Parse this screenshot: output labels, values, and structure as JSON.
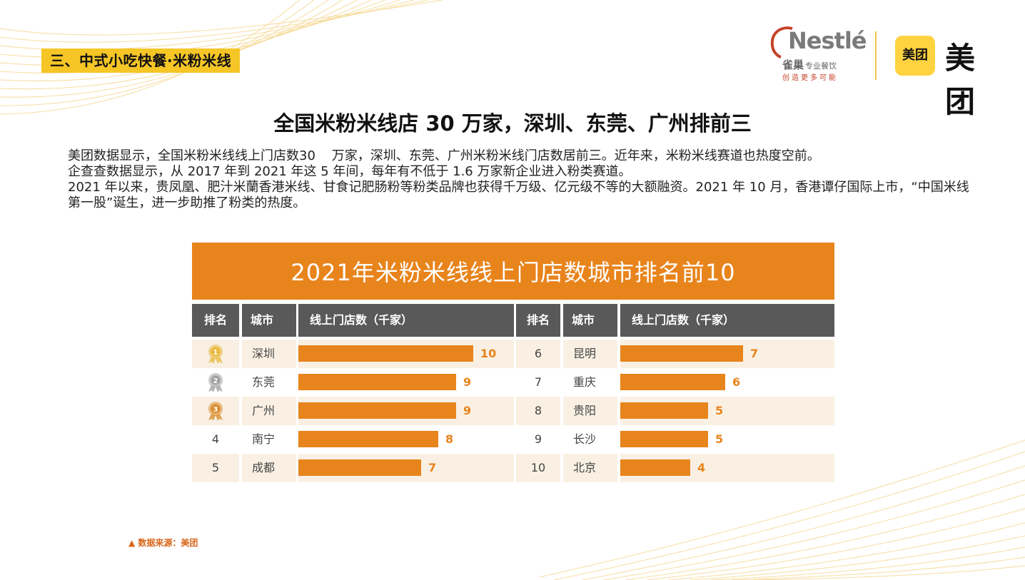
{
  "section_tag": "三、中式小吃快餐·米粉米线",
  "logos": {
    "nestle_word": "Nestlé",
    "nestle_cn": "雀巢",
    "nestle_cn_sub": "专业餐饮",
    "nestle_slogan": "创造更多可能",
    "meituan_badge": "美团",
    "meituan_word": "美团"
  },
  "title": "全国米粉米线店 30 万家，深圳、东莞、广州排前三",
  "paragraphs": [
    "美团数据显示，全国米粉米线线上门店数30    万家，深圳、东莞、广州米粉米线门店数居前三。近年来，米粉米线赛道也热度空前。",
    "企查查数据显示，从 2017 年到 2021 年这 5 年间，每年有不低于 1.6 万家新企业进入粉类赛道。",
    "2021 年以来，贵凤凰、肥汁米蘭香港米线、甘食记肥肠粉等粉类品牌也获得千万级、亿元级不等的大额融资。2021 年 10 月，香港谭仔国际上市，“中国米线第一股”诞生，进一步助推了粉类的热度。"
  ],
  "table": {
    "title": "2021年米粉米线线上门店数城市排名前10",
    "headers": {
      "rank": "排名",
      "city": "城市",
      "value": "线上门店数（千家）"
    }
  },
  "chart_data": {
    "type": "bar",
    "title": "2021年米粉米线线上门店数城市排名前10",
    "ylabel": "线上门店数（千家）",
    "columns": [
      "排名",
      "城市",
      "线上门店数（千家）"
    ],
    "max_value": 10,
    "rows": [
      {
        "rank": "1",
        "medal": "gold",
        "city": "深圳",
        "value": 10
      },
      {
        "rank": "2",
        "medal": "silver",
        "city": "东莞",
        "value": 9
      },
      {
        "rank": "3",
        "medal": "bronze",
        "city": "广州",
        "value": 9
      },
      {
        "rank": "4",
        "medal": "",
        "city": "南宁",
        "value": 8
      },
      {
        "rank": "5",
        "medal": "",
        "city": "成都",
        "value": 7
      },
      {
        "rank": "6",
        "medal": "",
        "city": "昆明",
        "value": 7
      },
      {
        "rank": "7",
        "medal": "",
        "city": "重庆",
        "value": 6
      },
      {
        "rank": "8",
        "medal": "",
        "city": "贵阳",
        "value": 5
      },
      {
        "rank": "9",
        "medal": "",
        "city": "长沙",
        "value": 5
      },
      {
        "rank": "10",
        "medal": "",
        "city": "北京",
        "value": 4
      }
    ],
    "colors": {
      "bar": "#e8841c",
      "header": "#595959",
      "alt_row": "#f9f0e3",
      "gold": "#e9b73a",
      "silver": "#9e9e9e",
      "bronze": "#d98a2b"
    }
  },
  "source": "▲ 数据来源：美团"
}
